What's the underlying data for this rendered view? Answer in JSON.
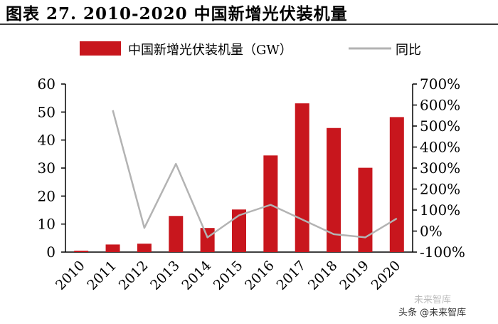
{
  "title": "图表 27. 2010-2020 中国新增光伏装机量",
  "watermark": "头条 @未来智库",
  "watermark_faint": "未来智库",
  "colors": {
    "bar": "#c8161d",
    "line": "#b3b3b3",
    "axis": "#000000"
  },
  "chart_data": {
    "type": "bar",
    "categories": [
      "2010",
      "2011",
      "2012",
      "2013",
      "2014",
      "2015",
      "2016",
      "2017",
      "2018",
      "2019",
      "2020"
    ],
    "series": [
      {
        "name": "中国新增光伏装机量（GW）",
        "type": "bar",
        "axis": "left",
        "values": [
          0.5,
          2.7,
          3.0,
          12.9,
          8.6,
          15.2,
          34.5,
          53.1,
          44.3,
          30.1,
          48.2
        ]
      },
      {
        "name": "同比",
        "type": "line",
        "axis": "right",
        "values": [
          null,
          575,
          15,
          320,
          -30,
          75,
          125,
          55,
          -15,
          -30,
          60
        ]
      }
    ],
    "y_left": {
      "min": 0,
      "max": 60,
      "ticks": [
        "0",
        "10",
        "20",
        "30",
        "40",
        "50",
        "60"
      ]
    },
    "y_right": {
      "min": -100,
      "max": 700,
      "ticks": [
        "-100%",
        "0%",
        "100%",
        "200%",
        "300%",
        "400%",
        "500%",
        "600%",
        "700%"
      ]
    },
    "legend_position": "top",
    "grid": false
  }
}
